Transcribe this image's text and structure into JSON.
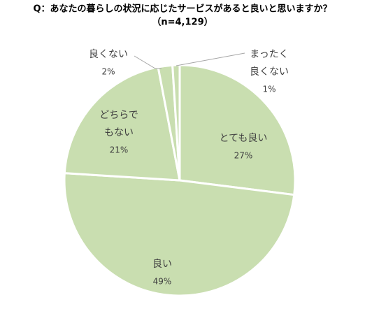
{
  "chart_data": {
    "type": "pie",
    "title": "Q：あなたの暮らしの状況に応じたサービスがあると良いと思いますか？",
    "subtitle": "（n=4,129）",
    "categories": [
      [
        "とても良い"
      ],
      [
        "良い"
      ],
      [
        "どちらで",
        "もない"
      ],
      [
        "良くない"
      ],
      [
        "まったく",
        "良くない"
      ]
    ],
    "values": [
      27,
      49,
      21,
      2,
      1
    ],
    "value_labels": [
      "27%",
      "49%",
      "21%",
      "2%",
      "1%"
    ],
    "color": "#c9deb0"
  }
}
